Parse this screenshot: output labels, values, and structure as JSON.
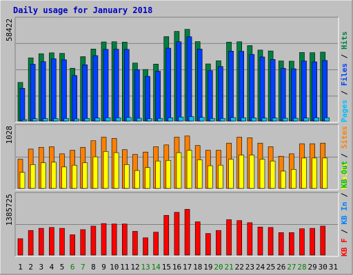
{
  "chart_data": {
    "title": "Daily usage for January 2018",
    "type": "bar",
    "days": [
      "1",
      "2",
      "3",
      "4",
      "5",
      "6",
      "7",
      "8",
      "9",
      "10",
      "11",
      "12",
      "13",
      "14",
      "15",
      "16",
      "17",
      "18",
      "19",
      "20",
      "21",
      "22",
      "23",
      "24",
      "25",
      "26",
      "27",
      "28",
      "29",
      "30",
      "31"
    ],
    "weekend_days": [
      "6",
      "7",
      "13",
      "14",
      "20",
      "21",
      "27",
      "28"
    ],
    "panels": [
      {
        "id": "hits-files-pages",
        "ymax_label": "58422",
        "ymax": 58422,
        "series": [
          {
            "name": "Hits",
            "color": "#008040",
            "values": [
              22300,
              36500,
              38900,
              39400,
              39100,
              30500,
              37200,
              41600,
              45700,
              45800,
              45600,
              33500,
              29800,
              32900,
              48800,
              51800,
              53000,
              45900,
              33000,
              34800,
              45600,
              45800,
              43600,
              41000,
              40500,
              34700,
              34600,
              39600,
              39500,
              39800
            ]
          },
          {
            "name": "Files",
            "color": "#0040FF",
            "values": [
              18900,
              32800,
              34300,
              36000,
              35400,
              26300,
              32500,
              37800,
              41400,
              41500,
              41400,
              29700,
              25800,
              28800,
              42100,
              45800,
              48700,
              41600,
              29100,
              31500,
              40400,
              40300,
              38500,
              37000,
              35600,
              30500,
              30200,
              34700,
              34200,
              35000
            ]
          },
          {
            "name": "Pages",
            "color": "#00C0FF",
            "values": [
              800,
              1300,
              1400,
              1400,
              1500,
              1200,
              1500,
              1700,
              1900,
              1900,
              2100,
              1600,
              1300,
              1500,
              1900,
              2300,
              2500,
              2100,
              1500,
              1500,
              2000,
              1900,
              1800,
              1700,
              1700,
              1600,
              1600,
              1700,
              1900,
              1900
            ]
          }
        ]
      },
      {
        "id": "visits-sites",
        "ymax_label": "1028",
        "ymax": 1028,
        "series": [
          {
            "name": "Sites",
            "color": "#FF8000",
            "values": [
              490,
              660,
              690,
              700,
              580,
              640,
              690,
              800,
              860,
              840,
              650,
              570,
              610,
              700,
              730,
              860,
              880,
              720,
              640,
              640,
              760,
              860,
              850,
              760,
              700,
              540,
              580,
              750,
              750,
              760
            ]
          },
          {
            "name": "Visits",
            "color": "#FFFF00",
            "values": [
              270,
              400,
              430,
              440,
              360,
              390,
              430,
              530,
              620,
              600,
              400,
              300,
              350,
              460,
              470,
              600,
              640,
              480,
              380,
              390,
              490,
              560,
              560,
              490,
              460,
              290,
              320,
              510,
              510,
              510
            ]
          }
        ]
      },
      {
        "id": "kbytes",
        "ymax_label": "1385725",
        "ymax": 1385725,
        "series": [
          {
            "name": "KB F",
            "color": "#FF0000",
            "values": [
              380000,
              570000,
              620000,
              640000,
              620000,
              470000,
              590000,
              670000,
              730000,
              720000,
              720000,
              550000,
              400000,
              530000,
              920000,
              990000,
              1060000,
              770000,
              500000,
              570000,
              820000,
              800000,
              750000,
              650000,
              640000,
              520000,
              520000,
              610000,
              620000,
              670000
            ]
          }
        ]
      }
    ],
    "right_labels": {
      "panel1": [
        "Pages",
        " / ",
        "Files",
        " / ",
        "Hits"
      ],
      "panel2": [
        "Visits",
        " / ",
        "Sites"
      ],
      "panel3": [
        "KB F",
        " / ",
        "KB In",
        " / ",
        "KB Out"
      ]
    },
    "right_label_colors": {
      "panel1": [
        "#00C0FF",
        "#000000",
        "#0040FF",
        "#000000",
        "#008040"
      ],
      "panel2": [
        "#FFFF00",
        "#000000",
        "#FF8000"
      ],
      "panel3": [
        "#FF0000",
        "#000000",
        "#0080FF",
        "#000000",
        "#00C000"
      ]
    },
    "grid": true
  },
  "colors": {
    "background": "#C0C0C0",
    "title": "#0000C0",
    "panel_background": "#C0C0C0",
    "weekday_label": "#000000",
    "weekend_label": "#008000"
  }
}
